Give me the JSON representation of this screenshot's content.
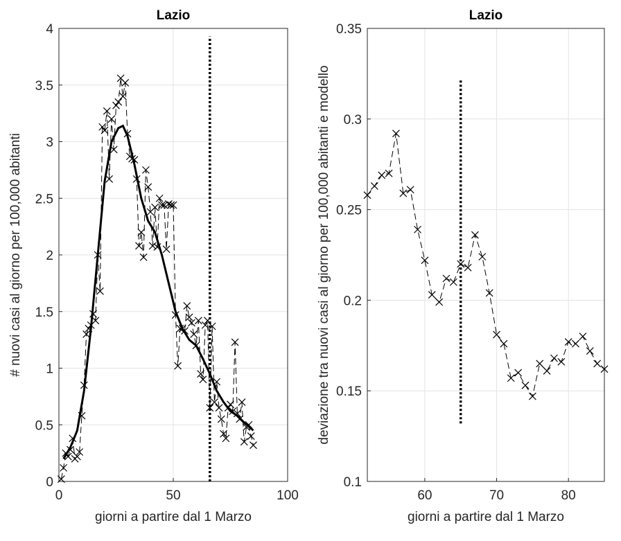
{
  "chart_data": [
    {
      "type": "line",
      "title": "Lazio",
      "x_label": "giorni a partire dal 1 Marzo",
      "y_label": "# nuovi casi al giorno per 100,000 abitanti",
      "xlim": [
        0,
        100
      ],
      "xticks": [
        0,
        50,
        100
      ],
      "ylim": [
        0,
        4
      ],
      "yticks": [
        0,
        0.5,
        1,
        1.5,
        2,
        2.5,
        3,
        3.5,
        4
      ],
      "grid": true,
      "series": [
        {
          "color": "#000000",
          "style": "dashed-cross",
          "x": [
            1,
            2,
            3,
            4,
            5,
            6,
            7,
            8,
            9,
            10,
            11,
            12,
            13,
            14,
            15,
            16,
            17,
            18,
            19,
            20,
            21,
            22,
            23,
            24,
            25,
            26,
            27,
            28,
            29,
            30,
            31,
            32,
            33,
            34,
            35,
            36,
            37,
            38,
            39,
            40,
            41,
            42,
            43,
            44,
            45,
            46,
            47,
            48,
            49,
            50,
            51,
            52,
            53,
            54,
            55,
            56,
            57,
            58,
            59,
            60,
            61,
            62,
            63,
            64,
            65,
            66,
            67,
            68,
            69,
            70,
            71,
            72,
            73,
            74,
            75,
            76,
            77,
            78,
            79,
            80,
            81,
            82,
            83,
            84,
            85
          ],
          "values": [
            0.02,
            0.12,
            0.25,
            0.22,
            0.28,
            0.38,
            0.2,
            0.22,
            0.26,
            0.58,
            0.85,
            1.3,
            1.35,
            1.38,
            1.48,
            1.42,
            2.0,
            1.68,
            3.13,
            3.1,
            3.27,
            2.67,
            3.2,
            2.93,
            3.32,
            3.35,
            3.56,
            3.4,
            3.52,
            3.07,
            2.87,
            2.85,
            2.84,
            2.67,
            2.08,
            2.2,
            1.98,
            2.75,
            2.6,
            2.38,
            2.08,
            2.42,
            2.07,
            2.5,
            2.44,
            2.44,
            2.05,
            2.45,
            2.44,
            2.44,
            1.47,
            1.02,
            1.35,
            1.35,
            1.33,
            1.55,
            1.45,
            1.4,
            1.3,
            1.2,
            1.42,
            0.95,
            0.9,
            1.38,
            1.42,
            0.65,
            1.37,
            0.7,
            0.88,
            0.65,
            0.55,
            0.42,
            0.38,
            0.65,
            0.68,
            0.62,
            1.23,
            0.6,
            0.55,
            0.7,
            0.35,
            0.48,
            0.5,
            0.4,
            0.32
          ]
        },
        {
          "color": "#000000",
          "style": "solid",
          "x": [
            2,
            5,
            8,
            11,
            14,
            17,
            20,
            23,
            26,
            28,
            30,
            33,
            36,
            39,
            42,
            45,
            48,
            51,
            54,
            57,
            60,
            63,
            66,
            69,
            72,
            75,
            78,
            81,
            85
          ],
          "values": [
            0.2,
            0.3,
            0.45,
            0.8,
            1.35,
            2.0,
            2.65,
            3.0,
            3.12,
            3.14,
            3.05,
            2.8,
            2.5,
            2.3,
            2.2,
            2.0,
            1.75,
            1.5,
            1.35,
            1.25,
            1.2,
            1.08,
            0.95,
            0.8,
            0.7,
            0.62,
            0.58,
            0.52,
            0.45
          ]
        }
      ],
      "vline": {
        "x": 66,
        "y": [
          0,
          3.93
        ]
      }
    },
    {
      "type": "line",
      "title": "Lazio",
      "x_label": "giorni a partire dal 1 Marzo",
      "y_label": "deviazione tra nuovi casi al giorno per 100,000 abitanti e modello",
      "xlim": [
        52,
        85
      ],
      "xticks": [
        60,
        70,
        80
      ],
      "ylim": [
        0.1,
        0.35
      ],
      "yticks": [
        0.1,
        0.15,
        0.2,
        0.25,
        0.3,
        0.35
      ],
      "grid": true,
      "series": [
        {
          "color": "#000000",
          "style": "dashed-cross",
          "x": [
            52,
            53,
            54,
            55,
            56,
            57,
            58,
            59,
            60,
            61,
            62,
            63,
            64,
            65,
            66,
            67,
            68,
            69,
            70,
            71,
            72,
            73,
            74,
            75,
            76,
            77,
            78,
            79,
            80,
            81,
            82,
            83,
            84,
            85
          ],
          "values": [
            0.258,
            0.263,
            0.269,
            0.27,
            0.292,
            0.259,
            0.261,
            0.239,
            0.222,
            0.203,
            0.199,
            0.212,
            0.21,
            0.22,
            0.218,
            0.236,
            0.224,
            0.204,
            0.181,
            0.176,
            0.157,
            0.16,
            0.153,
            0.147,
            0.165,
            0.161,
            0.168,
            0.166,
            0.177,
            0.176,
            0.18,
            0.172,
            0.165,
            0.162
          ]
        }
      ],
      "vline": {
        "x": 65,
        "y": [
          0.132,
          0.322
        ]
      }
    }
  ]
}
